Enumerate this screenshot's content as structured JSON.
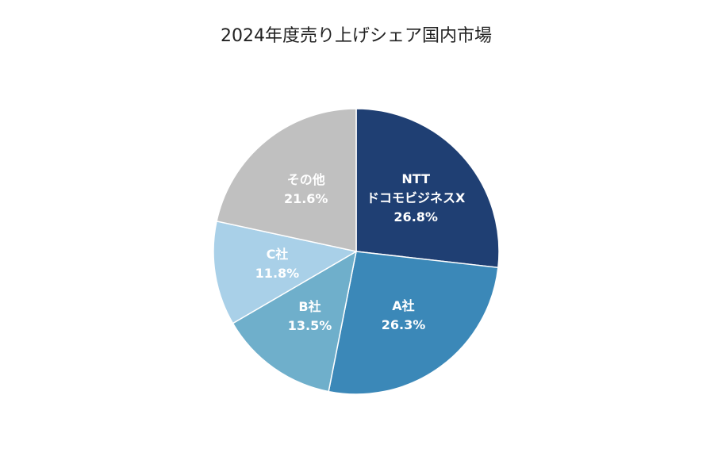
{
  "chart_data": {
    "type": "pie",
    "title": "2024年度売り上げシェア国内市場",
    "categories": [
      "NTT\nドコモビジネスX",
      "A社",
      "B社",
      "C社",
      "その他"
    ],
    "values": [
      26.8,
      26.3,
      13.5,
      11.8,
      21.6
    ],
    "value_labels": [
      "26.8%",
      "26.3%",
      "13.5%",
      "11.8%",
      "21.6%"
    ],
    "colors": [
      "#1f3f73",
      "#3b88b8",
      "#6fafcb",
      "#a9d0e8",
      "#c0c0c0"
    ]
  }
}
